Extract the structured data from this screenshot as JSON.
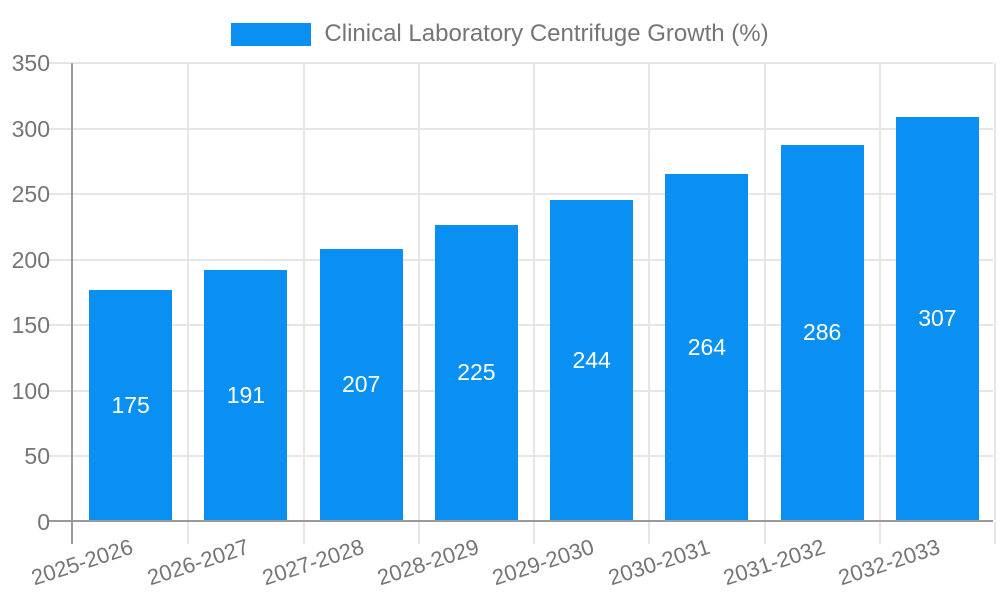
{
  "legend": {
    "label": "Clinical Laboratory Centrifuge Growth (%)"
  },
  "chart_data": {
    "type": "bar",
    "title": "Clinical Laboratory Centrifuge Growth (%)",
    "categories": [
      "2025-2026",
      "2026-2027",
      "2027-2028",
      "2028-2029",
      "2029-2030",
      "2030-2031",
      "2031-2032",
      "2032-2033"
    ],
    "values": [
      175,
      191,
      207,
      225,
      244,
      264,
      286,
      307
    ],
    "xlabel": "",
    "ylabel": "",
    "ylim": [
      0,
      350
    ],
    "ytick_step": 50,
    "grid": true,
    "legend_position": "top",
    "bar_labels_inside": true
  },
  "colors": {
    "bar": "#0a90f2",
    "grid": "#e6e6e6",
    "axis": "#9a9a9a",
    "tick_text": "#757575",
    "bar_label_text": "#ffffff"
  }
}
